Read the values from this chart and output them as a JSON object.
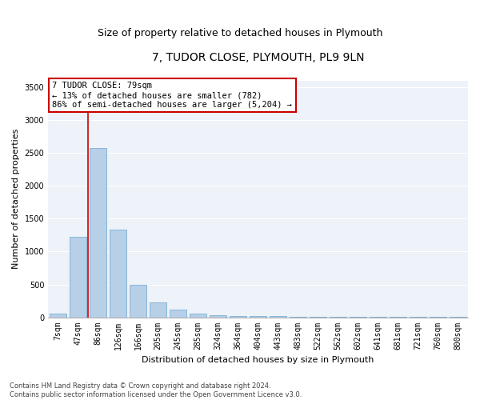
{
  "title": "7, TUDOR CLOSE, PLYMOUTH, PL9 9LN",
  "subtitle": "Size of property relative to detached houses in Plymouth",
  "xlabel": "Distribution of detached houses by size in Plymouth",
  "ylabel": "Number of detached properties",
  "footer_line1": "Contains HM Land Registry data © Crown copyright and database right 2024.",
  "footer_line2": "Contains public sector information licensed under the Open Government Licence v3.0.",
  "annotation_text": "7 TUDOR CLOSE: 79sqm\n← 13% of detached houses are smaller (782)\n86% of semi-detached houses are larger (5,204) →",
  "bar_color": "#b8cfe8",
  "bar_edge_color": "#7aafd4",
  "highlight_line_color": "#cc0000",
  "annotation_box_edgecolor": "#cc0000",
  "background_color": "#eef2f9",
  "grid_color": "#ffffff",
  "categories": [
    "7sqm",
    "47sqm",
    "86sqm",
    "126sqm",
    "166sqm",
    "205sqm",
    "245sqm",
    "285sqm",
    "324sqm",
    "364sqm",
    "404sqm",
    "443sqm",
    "483sqm",
    "522sqm",
    "562sqm",
    "602sqm",
    "641sqm",
    "681sqm",
    "721sqm",
    "760sqm",
    "800sqm"
  ],
  "values": [
    50,
    1230,
    2580,
    1340,
    490,
    230,
    115,
    55,
    35,
    20,
    20,
    20,
    10,
    2,
    2,
    2,
    2,
    2,
    2,
    2,
    2
  ],
  "ylim": [
    0,
    3600
  ],
  "yticks": [
    0,
    500,
    1000,
    1500,
    2000,
    2500,
    3000,
    3500
  ],
  "vline_x": 1.5,
  "title_fontsize": 10,
  "subtitle_fontsize": 9,
  "ylabel_fontsize": 8,
  "xlabel_fontsize": 8,
  "tick_fontsize": 7,
  "annotation_fontsize": 7.5,
  "footer_fontsize": 6
}
